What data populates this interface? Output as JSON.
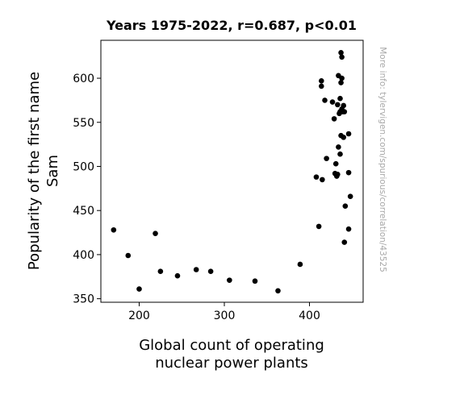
{
  "chart_data": {
    "type": "scatter",
    "title": "Years 1975-2022, r=0.687, p<0.01",
    "xlabel_lines": [
      "Global count of operating",
      "nuclear power plants"
    ],
    "ylabel_lines": [
      "Popularity of the first name",
      "Sam"
    ],
    "side_note": "More info: tylervigen.com/spurious/correlation/43525",
    "xlim": [
      155,
      463
    ],
    "ylim": [
      346,
      643
    ],
    "x_ticks": [
      200,
      300,
      400
    ],
    "y_ticks": [
      350,
      400,
      450,
      500,
      550,
      600
    ],
    "grid": false,
    "marker_color": "#000000",
    "points": [
      {
        "x": 170,
        "y": 428
      },
      {
        "x": 187,
        "y": 399
      },
      {
        "x": 200,
        "y": 361
      },
      {
        "x": 219,
        "y": 424
      },
      {
        "x": 225,
        "y": 381
      },
      {
        "x": 245,
        "y": 376
      },
      {
        "x": 267,
        "y": 383
      },
      {
        "x": 284,
        "y": 381
      },
      {
        "x": 306,
        "y": 371
      },
      {
        "x": 336,
        "y": 370
      },
      {
        "x": 363,
        "y": 359
      },
      {
        "x": 389,
        "y": 389
      },
      {
        "x": 408,
        "y": 488
      },
      {
        "x": 411,
        "y": 432
      },
      {
        "x": 415,
        "y": 485
      },
      {
        "x": 414,
        "y": 597
      },
      {
        "x": 414,
        "y": 591
      },
      {
        "x": 418,
        "y": 575
      },
      {
        "x": 420,
        "y": 509
      },
      {
        "x": 427,
        "y": 573
      },
      {
        "x": 429,
        "y": 554
      },
      {
        "x": 430,
        "y": 492
      },
      {
        "x": 431,
        "y": 503
      },
      {
        "x": 432,
        "y": 489
      },
      {
        "x": 433,
        "y": 491
      },
      {
        "x": 433,
        "y": 570
      },
      {
        "x": 434,
        "y": 603
      },
      {
        "x": 434,
        "y": 522
      },
      {
        "x": 435,
        "y": 560
      },
      {
        "x": 436,
        "y": 514
      },
      {
        "x": 436,
        "y": 577
      },
      {
        "x": 437,
        "y": 595
      },
      {
        "x": 437,
        "y": 535
      },
      {
        "x": 437,
        "y": 629
      },
      {
        "x": 438,
        "y": 600
      },
      {
        "x": 438,
        "y": 624
      },
      {
        "x": 438,
        "y": 565
      },
      {
        "x": 439,
        "y": 562
      },
      {
        "x": 440,
        "y": 569
      },
      {
        "x": 440,
        "y": 533
      },
      {
        "x": 441,
        "y": 562
      },
      {
        "x": 441,
        "y": 414
      },
      {
        "x": 442,
        "y": 455
      },
      {
        "x": 446,
        "y": 493
      },
      {
        "x": 446,
        "y": 537
      },
      {
        "x": 446,
        "y": 429
      },
      {
        "x": 448,
        "y": 466
      },
      {
        "x": 436,
        "y": 562
      }
    ]
  }
}
